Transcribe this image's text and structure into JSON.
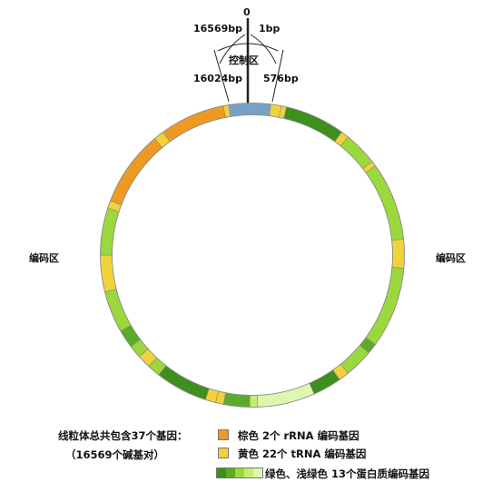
{
  "top_labels": {
    "zero": "0",
    "left_end": "16569bp",
    "right_start": "1bp",
    "control_region": "控制区",
    "left_boundary": "16024bp",
    "right_boundary": "576bp"
  },
  "side_labels": {
    "left": "编码区",
    "right": "编码区"
  },
  "summary": {
    "line1": "线粒体总共包含37个基因：",
    "line2": "（16569个碱基对）"
  },
  "legend": [
    {
      "text": "棕色 2个 rRNA 编码基因",
      "colors": [
        "#ee9a22"
      ]
    },
    {
      "text": "黄色 22个 tRNA 编码基因",
      "colors": [
        "#f2d23a"
      ]
    },
    {
      "text": "绿色、浅绿色 13个蛋白质编码基因",
      "colors": [
        "#3f8f1e",
        "#5aac28",
        "#9ad83c",
        "#c2ee6c",
        "#ddf7b0"
      ]
    }
  ],
  "colors": {
    "control": "#78a1c8",
    "rrna": "#ee9a22",
    "trna": "#f2d23a",
    "protein_dark": "#3f8f1e",
    "protein_mid": "#5aac28",
    "protein_light": "#9ad83c",
    "protein_pale": "#c2ee6c",
    "protein_verypale": "#ddf7b0"
  }
}
